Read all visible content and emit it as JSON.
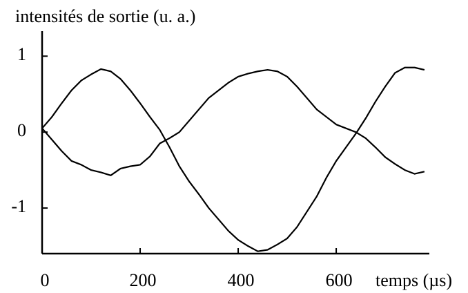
{
  "chart_data": {
    "type": "line",
    "ylabel": "intensités de sortie (u. a.)",
    "xlabel": "temps (µs)",
    "x": [
      0,
      20,
      40,
      60,
      80,
      100,
      120,
      140,
      160,
      180,
      200,
      220,
      240,
      260,
      280,
      300,
      320,
      340,
      360,
      380,
      400,
      420,
      440,
      460,
      480,
      500,
      520,
      540,
      560,
      580,
      600,
      620,
      640,
      660,
      680,
      700,
      720,
      740,
      760,
      780
    ],
    "series": [
      {
        "color": "#000000",
        "values": [
          0.05,
          0.2,
          0.38,
          0.55,
          0.68,
          0.76,
          0.83,
          0.8,
          0.7,
          0.55,
          0.38,
          0.2,
          0.03,
          -0.2,
          -0.45,
          -0.65,
          -0.82,
          -1.0,
          -1.15,
          -1.3,
          -1.42,
          -1.5,
          -1.57,
          -1.55,
          -1.48,
          -1.4,
          -1.25,
          -1.05,
          -0.85,
          -0.6,
          -0.38,
          -0.2,
          -0.02,
          0.18,
          0.4,
          0.6,
          0.78,
          0.85,
          0.85,
          0.82
        ]
      },
      {
        "color": "#000000",
        "values": [
          0.05,
          -0.1,
          -0.25,
          -0.38,
          -0.43,
          -0.5,
          -0.53,
          -0.57,
          -0.48,
          -0.45,
          -0.43,
          -0.32,
          -0.15,
          -0.08,
          0.0,
          0.15,
          0.3,
          0.45,
          0.55,
          0.65,
          0.73,
          0.77,
          0.8,
          0.82,
          0.8,
          0.73,
          0.6,
          0.45,
          0.3,
          0.2,
          0.1,
          0.05,
          0.0,
          -0.08,
          -0.2,
          -0.33,
          -0.42,
          -0.5,
          -0.55,
          -0.52
        ]
      }
    ],
    "xlim": [
      0,
      790
    ],
    "xticks": [
      0,
      200,
      400,
      600
    ],
    "ylim": [
      -1.6,
      1.33
    ],
    "yticks": [
      -1,
      0,
      1
    ],
    "grid": false
  }
}
